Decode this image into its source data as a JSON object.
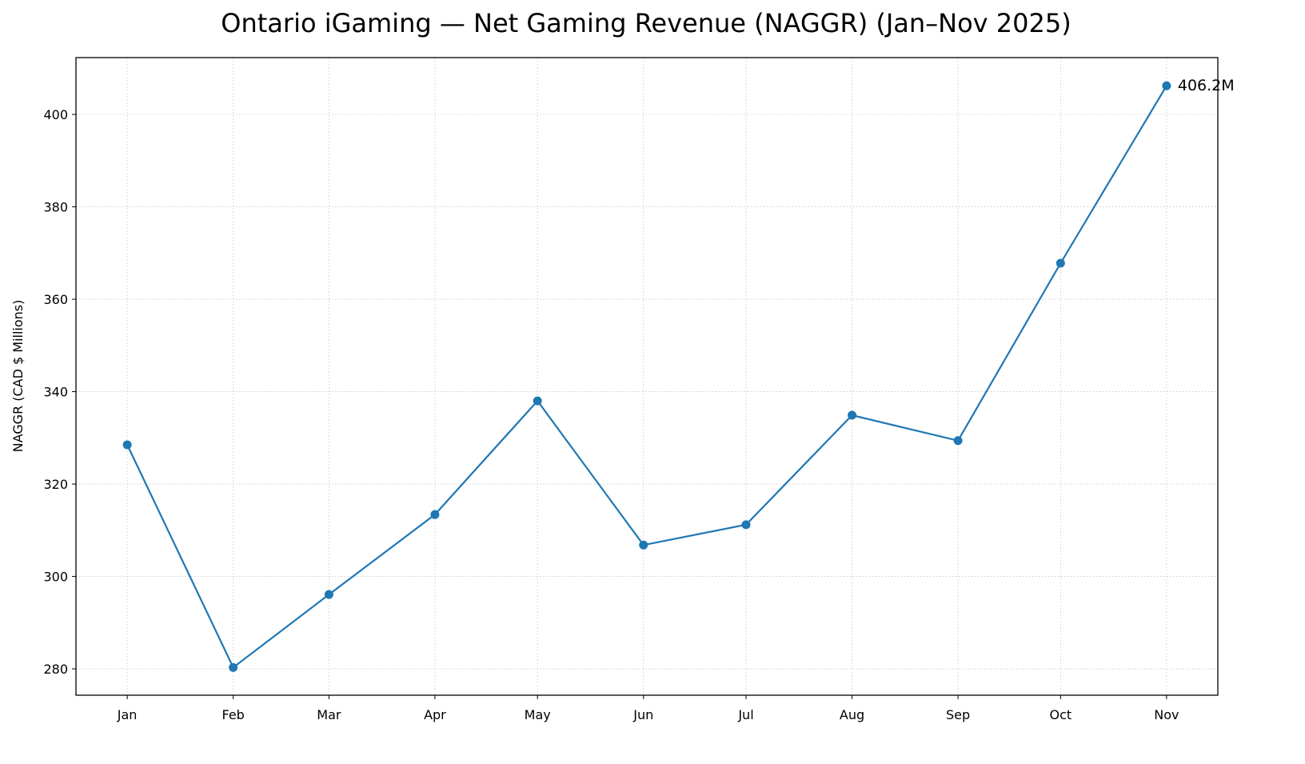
{
  "chart_data": {
    "type": "line",
    "title": "Ontario iGaming — Net Gaming Revenue (NAGGR) (Jan–Nov 2025)",
    "xlabel": "",
    "ylabel": "NAGGR (CAD $ Millions)",
    "x": [
      "2025-01-01",
      "2025-02-01",
      "2025-03-01",
      "2025-04-01",
      "2025-05-01",
      "2025-06-01",
      "2025-07-01",
      "2025-08-01",
      "2025-09-01",
      "2025-10-01",
      "2025-11-01"
    ],
    "categories": [
      "Jan",
      "Feb",
      "Mar",
      "Apr",
      "May",
      "Jun",
      "Jul",
      "Aug",
      "Sep",
      "Oct",
      "Nov"
    ],
    "values": [
      328.5,
      280.3,
      296.1,
      313.4,
      338.0,
      306.8,
      311.2,
      334.9,
      329.4,
      367.8,
      406.2
    ],
    "ylim": [
      274.3,
      412.3
    ],
    "yticks": [
      280,
      300,
      320,
      340,
      360,
      380,
      400
    ],
    "grid": true,
    "marker": "circle",
    "color": "#1f77b4",
    "annotation": {
      "label": "406.2M",
      "category": "Nov"
    }
  }
}
